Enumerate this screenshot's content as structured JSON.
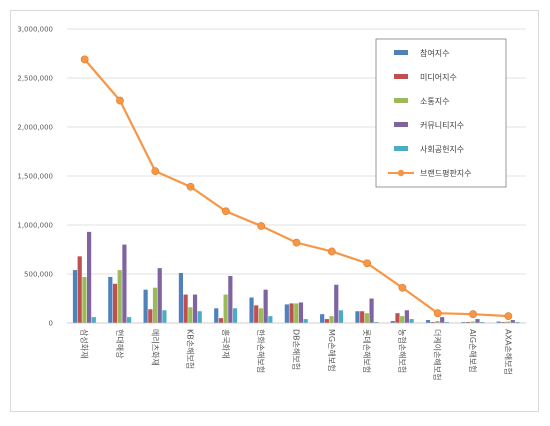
{
  "chart_data": {
    "type": "bar",
    "ylim": [
      0,
      3000000
    ],
    "y_ticks": [
      "0",
      "500,000",
      "1,000,000",
      "1,500,000",
      "2,000,000",
      "2,500,000",
      "3,000,000"
    ],
    "grid": true,
    "legend_position": "top-right",
    "categories": [
      "삼성화재",
      "현대해상",
      "메리츠화재",
      "KB손해보험",
      "흥국화재",
      "한화손해보험",
      "DB손해보험",
      "MG손해보험",
      "롯데손해보험",
      "농협손해보험",
      "더케이손해보험",
      "AIG손해보험",
      "AXA손해보험"
    ],
    "series": [
      {
        "name": "참여지수",
        "kind": "bar",
        "color": "#4f81bd",
        "values": [
          540000,
          470000,
          340000,
          510000,
          150000,
          260000,
          190000,
          90000,
          120000,
          20000,
          30000,
          10000,
          15000
        ]
      },
      {
        "name": "미디어지수",
        "kind": "bar",
        "color": "#c0504d",
        "values": [
          680000,
          400000,
          140000,
          290000,
          50000,
          180000,
          200000,
          40000,
          120000,
          100000,
          10000,
          10000,
          10000
        ]
      },
      {
        "name": "소통지수",
        "kind": "bar",
        "color": "#9bbb59",
        "values": [
          470000,
          540000,
          360000,
          160000,
          290000,
          150000,
          200000,
          70000,
          100000,
          70000,
          20000,
          15000,
          15000
        ]
      },
      {
        "name": "커뮤니티지수",
        "kind": "bar",
        "color": "#8064a2",
        "values": [
          930000,
          800000,
          560000,
          290000,
          480000,
          340000,
          210000,
          390000,
          250000,
          130000,
          60000,
          40000,
          30000
        ]
      },
      {
        "name": "사회공헌지수",
        "kind": "bar",
        "color": "#4bacc6",
        "values": [
          60000,
          60000,
          130000,
          120000,
          150000,
          70000,
          40000,
          130000,
          10000,
          40000,
          10000,
          10000,
          10000
        ]
      },
      {
        "name": "브랜드평판지수",
        "kind": "line",
        "color": "#f79646",
        "values": [
          2690000,
          2270000,
          1550000,
          1390000,
          1140000,
          990000,
          820000,
          730000,
          610000,
          360000,
          100000,
          90000,
          70000
        ]
      }
    ]
  }
}
